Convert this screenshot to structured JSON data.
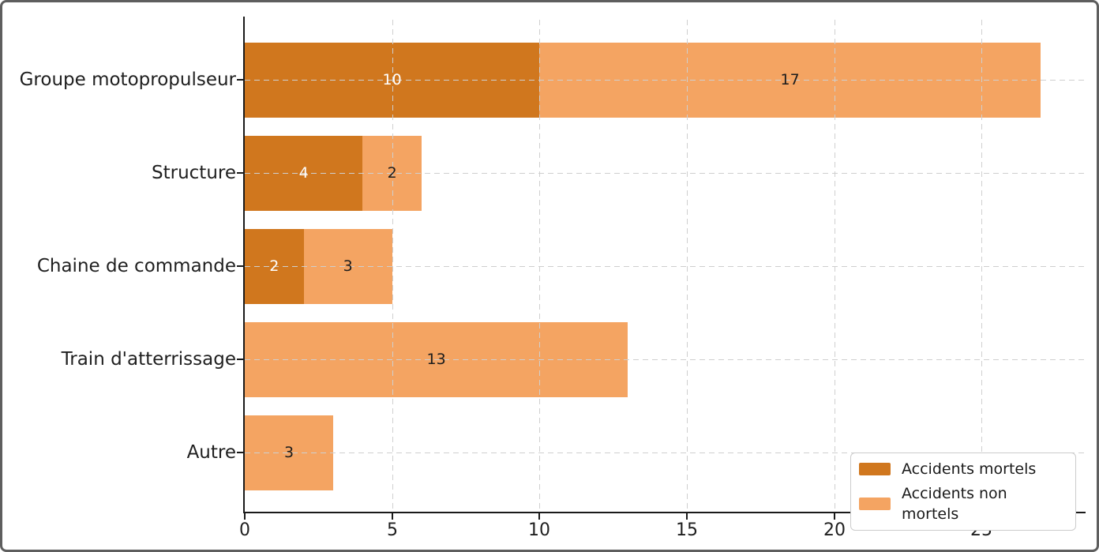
{
  "chart_data": {
    "type": "bar",
    "orientation": "horizontal",
    "stacked": true,
    "title": "",
    "xlabel": "",
    "ylabel": "",
    "categories": [
      "Groupe motopropulseur",
      "Structure",
      "Chaine de commande",
      "Train d'atterrissage",
      "Autre"
    ],
    "series": [
      {
        "name": "Accidents mortels",
        "color": "#d0771e",
        "value_label_color": "#ffffff",
        "values": [
          10,
          4,
          2,
          0,
          0
        ]
      },
      {
        "name": "Accidents non mortels",
        "color": "#f4a462",
        "value_label_color": "#1c1c1c",
        "values": [
          17,
          2,
          3,
          13,
          3
        ]
      }
    ],
    "x_ticks": [
      0,
      5,
      10,
      15,
      20,
      25
    ],
    "xlim": [
      0,
      28.5
    ],
    "bar_value_labels": true,
    "grid": {
      "linestyle": "dashed",
      "color": "#cfcfcf",
      "axis": "both"
    },
    "legend_position": "lower right",
    "axis_color": "#1a1a1a",
    "background_color": "#ffffff"
  }
}
